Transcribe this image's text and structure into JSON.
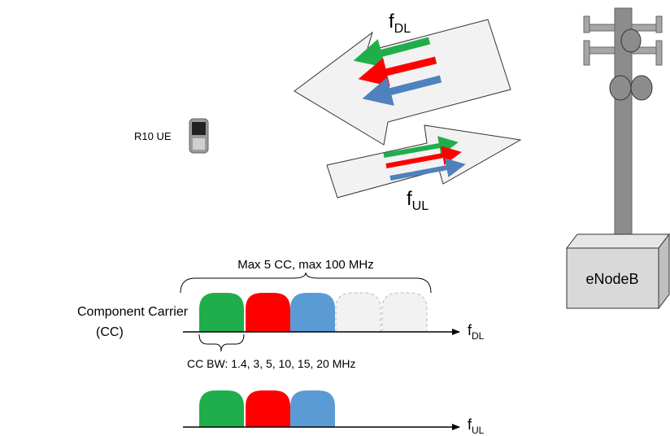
{
  "arrows": {
    "downlink": {
      "label": "f",
      "sub": "DL"
    },
    "uplink": {
      "label": "f",
      "sub": "UL"
    }
  },
  "ue": {
    "label": "R10 UE"
  },
  "base_station": {
    "label": "eNodeB"
  },
  "carrier_diagram": {
    "span_label": "Max 5 CC, max 100 MHz",
    "name": [
      "Component Carrier",
      "(CC)"
    ],
    "bandwidth_label": "CC BW: 1.4, 3, 5, 10, 15, 20 MHz",
    "downlink_axis": {
      "label": "f",
      "sub": "DL"
    },
    "uplink_axis": {
      "label": "f",
      "sub": "UL"
    }
  }
}
